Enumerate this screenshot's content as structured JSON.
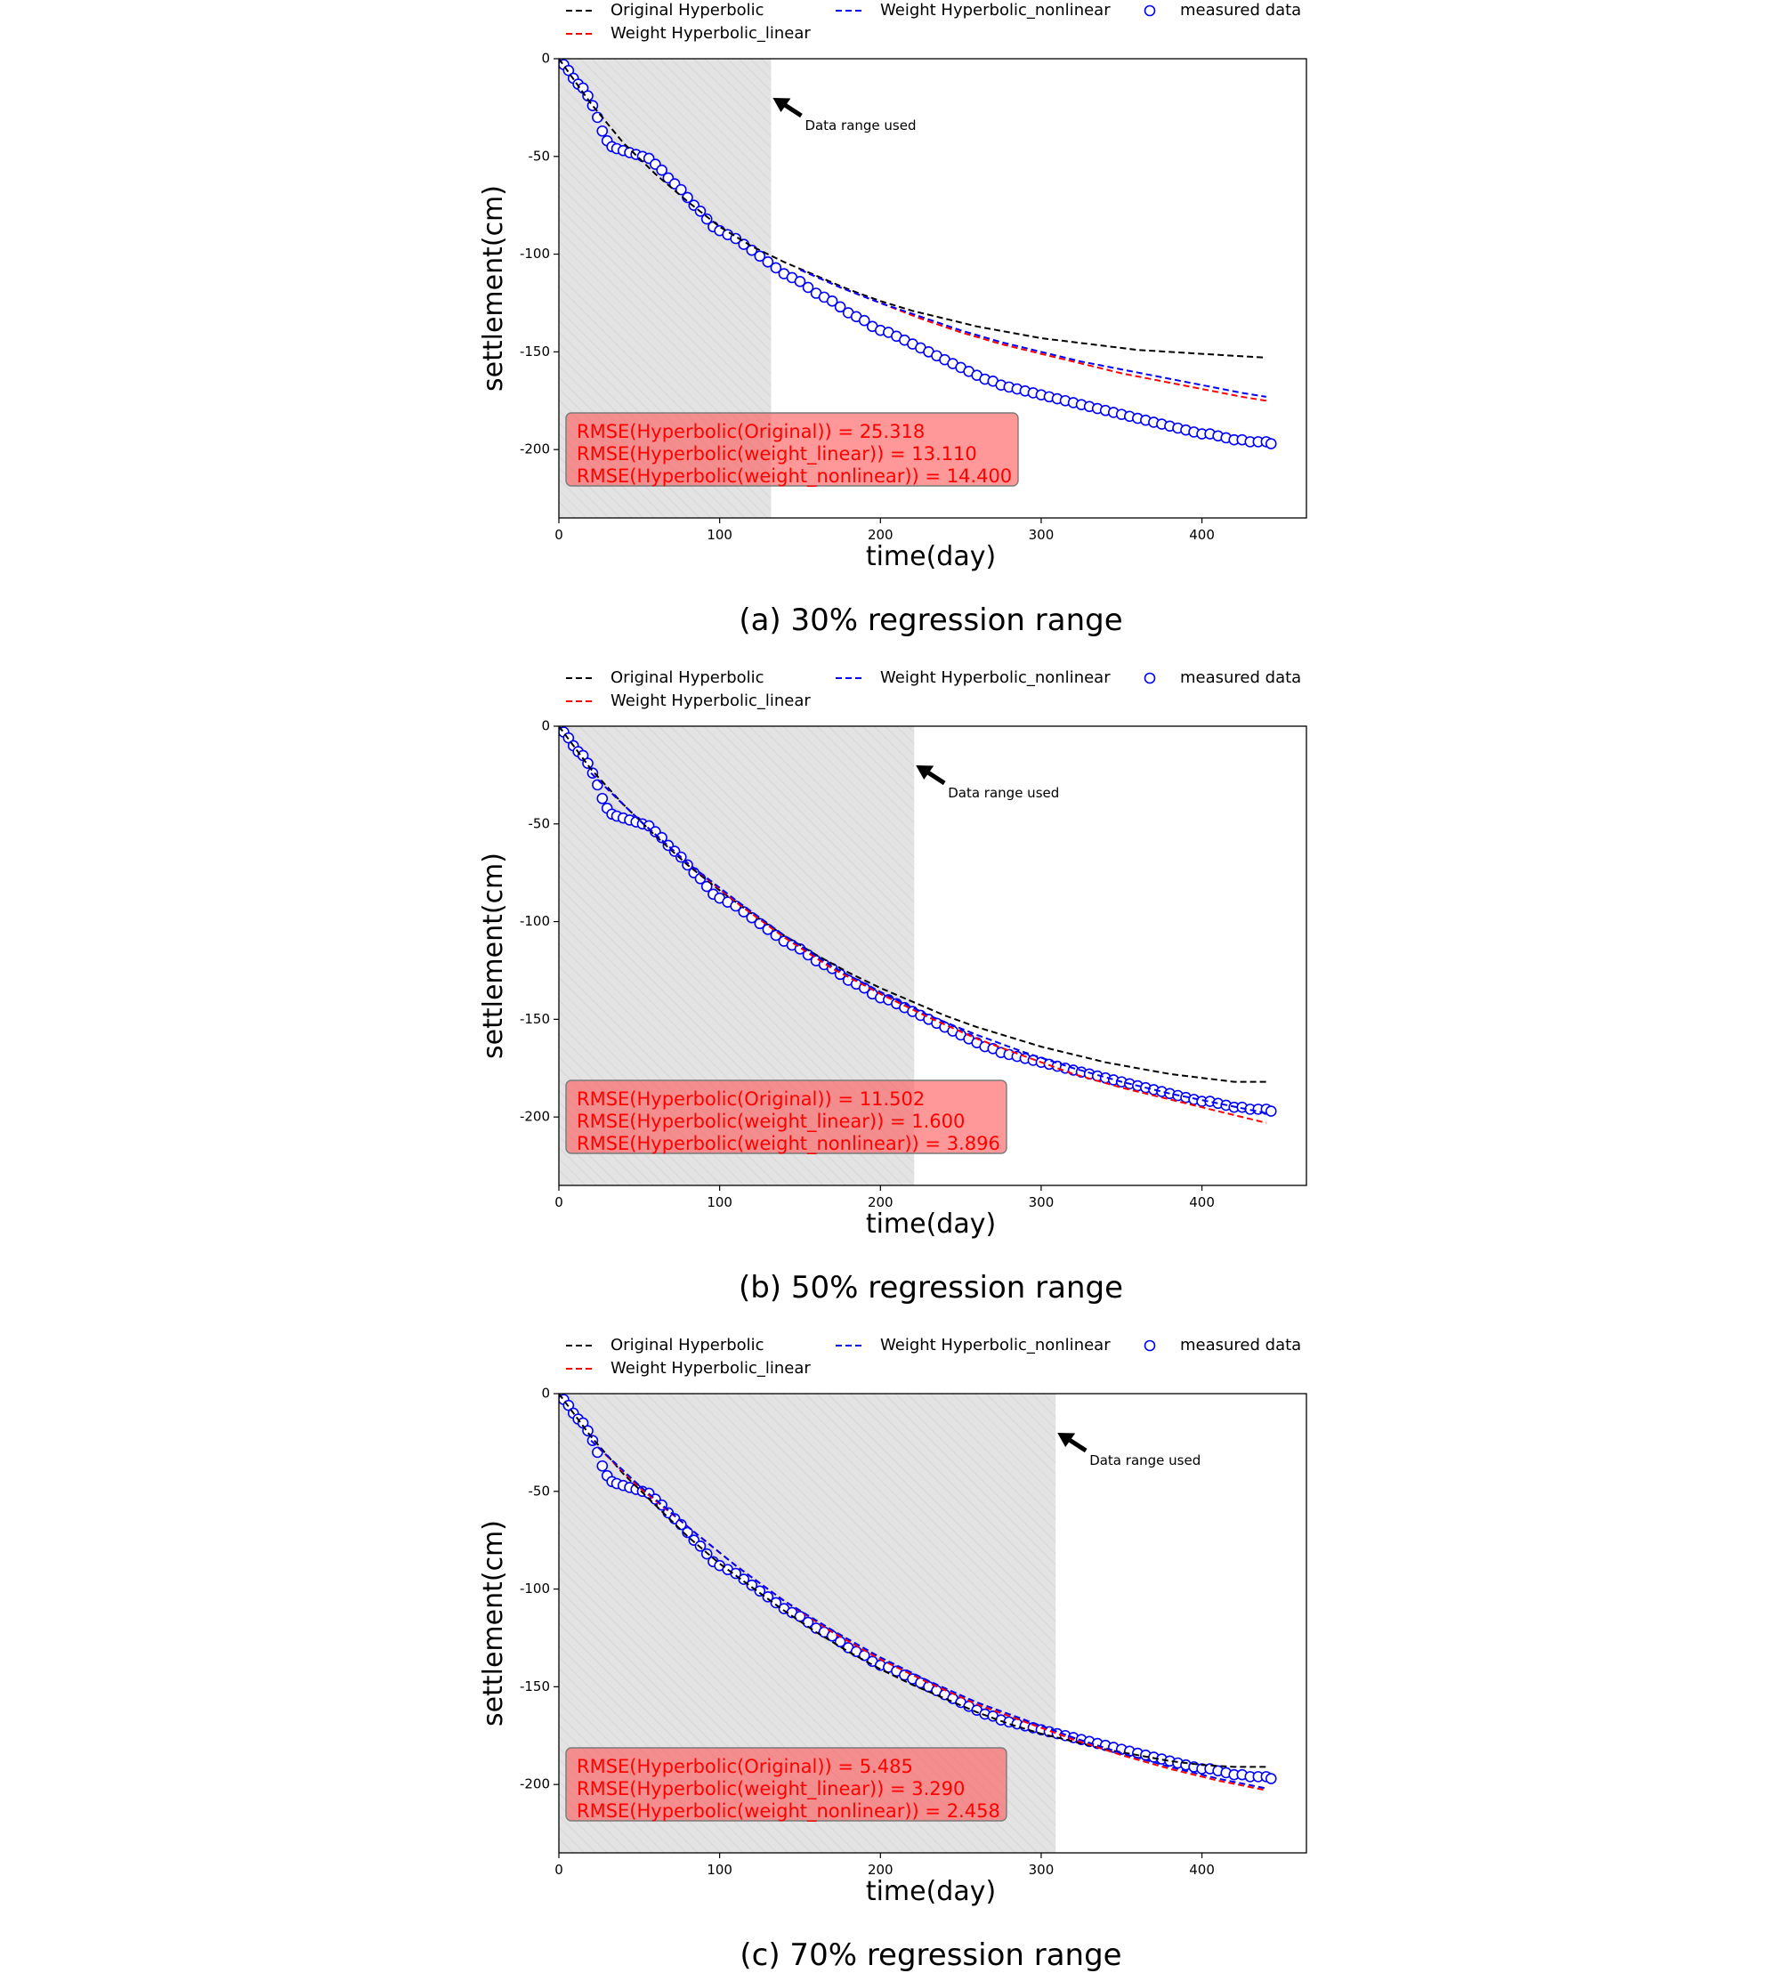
{
  "shared": {
    "xlabel": "time(day)",
    "ylabel": "settlement(cm)",
    "xlim": [
      0,
      465
    ],
    "ylim": [
      -235,
      0
    ],
    "xticks": [
      0,
      100,
      200,
      300,
      400
    ],
    "yticks": [
      0,
      -50,
      -100,
      -150,
      -200
    ],
    "legend": [
      {
        "label": "Original Hyperbolic",
        "style": "dashed-line",
        "color": "#000000"
      },
      {
        "label": "Weight Hyperbolic_linear",
        "style": "dashed-line",
        "color": "#ff0000"
      },
      {
        "label": "Weight Hyperbolic_nonlinear",
        "style": "dashed-line",
        "color": "#0000ff"
      },
      {
        "label": "measured data",
        "style": "circle-marker",
        "color": "#0000ff"
      }
    ],
    "annotation": "Data range used",
    "measured_data": {
      "x": [
        0,
        3,
        6,
        9,
        12,
        15,
        18,
        21,
        24,
        27,
        30,
        33,
        36,
        40,
        44,
        48,
        52,
        56,
        60,
        64,
        68,
        72,
        76,
        80,
        84,
        88,
        92,
        96,
        100,
        105,
        110,
        115,
        120,
        125,
        130,
        135,
        140,
        145,
        150,
        155,
        160,
        165,
        170,
        175,
        180,
        185,
        190,
        195,
        200,
        205,
        210,
        215,
        220,
        225,
        230,
        235,
        240,
        245,
        250,
        255,
        260,
        265,
        270,
        275,
        280,
        285,
        290,
        295,
        300,
        305,
        310,
        315,
        320,
        325,
        330,
        335,
        340,
        345,
        350,
        355,
        360,
        365,
        370,
        375,
        380,
        385,
        390,
        395,
        400,
        405,
        410,
        415,
        420,
        425,
        430,
        435,
        440,
        443
      ],
      "y": [
        0,
        -3,
        -6,
        -10,
        -13,
        -15,
        -19,
        -24,
        -30,
        -37,
        -42,
        -45,
        -46,
        -47,
        -48,
        -49,
        -50,
        -51,
        -54,
        -57,
        -61,
        -64,
        -67,
        -71,
        -75,
        -78,
        -82,
        -86,
        -88,
        -90,
        -92,
        -95,
        -98,
        -101,
        -104,
        -107,
        -110,
        -112,
        -114,
        -117,
        -120,
        -122,
        -124,
        -127,
        -130,
        -132,
        -134,
        -137,
        -139,
        -140,
        -142,
        -144,
        -146,
        -148,
        -150,
        -152,
        -154,
        -156,
        -158,
        -160,
        -162,
        -164,
        -165,
        -167,
        -168,
        -169,
        -170,
        -171,
        -172,
        -173,
        -174,
        -175,
        -176,
        -177,
        -178,
        -179,
        -180,
        -181,
        -182,
        -183,
        -184,
        -185,
        -186,
        -187,
        -188,
        -189,
        -190,
        -191,
        -192,
        -192,
        -193,
        -194,
        -195,
        -195,
        -196,
        -196,
        -196,
        -197
      ]
    }
  },
  "chart_data": [
    {
      "type": "line",
      "panel": "a",
      "title": "(a) 30% regression range",
      "xlabel": "time(day)",
      "ylabel": "settlement(cm)",
      "xlim": [
        0,
        465
      ],
      "ylim": [
        -235,
        0
      ],
      "regression_range_end": 132,
      "rmse_lines": [
        "RMSE(Hyperbolic(Original)) = 25.318",
        "RMSE(Hyperbolic(weight_linear)) = 13.110",
        "RMSE(Hyperbolic(weight_nonlinear)) = 14.400"
      ],
      "series": [
        {
          "name": "Original Hyperbolic",
          "color": "#000000",
          "x": [
            0,
            20,
            40,
            60,
            80,
            100,
            120,
            140,
            160,
            180,
            200,
            220,
            240,
            260,
            280,
            300,
            320,
            340,
            360,
            380,
            400,
            420,
            440
          ],
          "y": [
            0,
            -23,
            -43,
            -59,
            -73,
            -86,
            -96,
            -104,
            -111,
            -118,
            -124,
            -129,
            -133,
            -137,
            -140,
            -143,
            -145,
            -147,
            -149,
            -150,
            -151,
            -152,
            -153
          ]
        },
        {
          "name": "Weight Hyperbolic_linear",
          "color": "#ff0000",
          "x": [
            150,
            175,
            200,
            225,
            250,
            275,
            300,
            325,
            350,
            375,
            400,
            425,
            440
          ],
          "y": [
            -108,
            -117,
            -125,
            -133,
            -140,
            -146,
            -151,
            -156,
            -161,
            -165,
            -169,
            -173,
            -175
          ]
        },
        {
          "name": "Weight Hyperbolic_nonlinear",
          "color": "#0000ff",
          "x": [
            150,
            175,
            200,
            225,
            250,
            275,
            300,
            325,
            350,
            375,
            400,
            425,
            440
          ],
          "y": [
            -108,
            -117,
            -125,
            -132,
            -139,
            -145,
            -150,
            -155,
            -159,
            -163,
            -167,
            -171,
            -173
          ]
        }
      ]
    },
    {
      "type": "line",
      "panel": "b",
      "title": "(b) 50% regression range",
      "xlabel": "time(day)",
      "ylabel": "settlement(cm)",
      "xlim": [
        0,
        465
      ],
      "ylim": [
        -235,
        0
      ],
      "regression_range_end": 221,
      "rmse_lines": [
        "RMSE(Hyperbolic(Original)) = 11.502",
        "RMSE(Hyperbolic(weight_linear)) = 1.600",
        "RMSE(Hyperbolic(weight_nonlinear)) = 3.896"
      ],
      "series": [
        {
          "name": "Original Hyperbolic",
          "color": "#000000",
          "x": [
            0,
            20,
            40,
            60,
            80,
            100,
            120,
            140,
            160,
            180,
            200,
            220,
            240,
            260,
            280,
            300,
            320,
            340,
            360,
            380,
            400,
            420,
            440
          ],
          "y": [
            0,
            -22,
            -40,
            -56,
            -71,
            -84,
            -96,
            -107,
            -117,
            -126,
            -134,
            -141,
            -148,
            -154,
            -159,
            -164,
            -168,
            -172,
            -175,
            -178,
            -180,
            -182,
            -182
          ]
        },
        {
          "name": "Weight Hyperbolic_linear",
          "color": "#ff0000",
          "x": [
            20,
            50,
            80,
            110,
            140,
            170,
            200,
            230,
            260,
            290,
            320,
            350,
            380,
            410,
            440
          ],
          "y": [
            -24,
            -48,
            -70,
            -90,
            -108,
            -124,
            -137,
            -149,
            -160,
            -169,
            -178,
            -185,
            -191,
            -197,
            -203
          ]
        },
        {
          "name": "Weight Hyperbolic_nonlinear",
          "color": "#0000ff",
          "x": [
            20,
            50,
            80,
            110,
            140,
            170,
            200,
            230,
            260,
            290,
            320,
            350,
            380,
            410,
            440
          ],
          "y": [
            -24,
            -48,
            -70,
            -89,
            -107,
            -123,
            -136,
            -148,
            -158,
            -167,
            -175,
            -182,
            -188,
            -193,
            -198
          ]
        }
      ]
    },
    {
      "type": "line",
      "panel": "c",
      "title": "(c) 70% regression range",
      "xlabel": "time(day)",
      "ylabel": "settlement(cm)",
      "xlim": [
        0,
        465
      ],
      "ylim": [
        -235,
        0
      ],
      "regression_range_end": 309,
      "rmse_lines": [
        "RMSE(Hyperbolic(Original)) = 5.485",
        "RMSE(Hyperbolic(weight_linear)) = 3.290",
        "RMSE(Hyperbolic(weight_nonlinear)) = 2.458"
      ],
      "series": [
        {
          "name": "Original Hyperbolic",
          "color": "#000000",
          "x": [
            0,
            20,
            40,
            60,
            80,
            100,
            120,
            140,
            160,
            180,
            200,
            220,
            240,
            260,
            280,
            300,
            320,
            340,
            360,
            380,
            400,
            420,
            440
          ],
          "y": [
            0,
            -22,
            -41,
            -57,
            -73,
            -87,
            -99,
            -111,
            -122,
            -132,
            -141,
            -149,
            -156,
            -163,
            -169,
            -174,
            -178,
            -182,
            -185,
            -188,
            -190,
            -191,
            -191
          ]
        },
        {
          "name": "Weight Hyperbolic_linear",
          "color": "#ff0000",
          "x": [
            20,
            50,
            80,
            110,
            140,
            170,
            200,
            230,
            260,
            290,
            320,
            350,
            380,
            410,
            440
          ],
          "y": [
            -24,
            -48,
            -68,
            -88,
            -106,
            -122,
            -136,
            -148,
            -159,
            -168,
            -177,
            -185,
            -192,
            -198,
            -203
          ]
        },
        {
          "name": "Weight Hyperbolic_nonlinear",
          "color": "#0000ff",
          "x": [
            20,
            50,
            80,
            110,
            140,
            170,
            200,
            230,
            260,
            290,
            320,
            350,
            380,
            410,
            440
          ],
          "y": [
            -24,
            -47,
            -68,
            -88,
            -106,
            -121,
            -135,
            -147,
            -158,
            -167,
            -176,
            -184,
            -191,
            -197,
            -202
          ]
        }
      ]
    }
  ]
}
